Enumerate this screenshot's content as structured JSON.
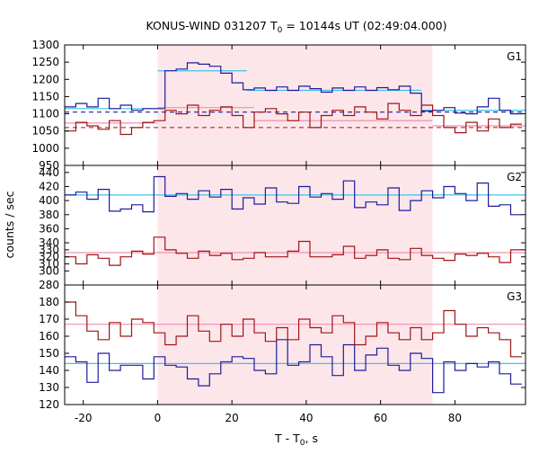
{
  "title": "KONUS-WIND 031207 T0 = 10144s UT (02:49:04.000)",
  "title_parts": {
    "prefix": "KONUS-WIND 031207 T",
    "sub": "0",
    "suffix": " = 10144s UT (02:49:04.000)"
  },
  "chart_data": {
    "type": "line",
    "style": "step",
    "xlabel": {
      "prefix": "T - T",
      "sub": "0",
      "suffix": ", s"
    },
    "ylabel": "counts / sec",
    "xlim": [
      -25,
      99
    ],
    "xticks": [
      -20,
      0,
      20,
      40,
      60,
      80
    ],
    "shaded_interval": [
      0,
      74
    ],
    "shade_color": "#fde6ea",
    "colors": {
      "red": "#a01414",
      "blue": "#1c1c9c",
      "red_fit": "#f090b0",
      "blue_fit": "#40c0e8"
    },
    "panels": [
      {
        "label": "G1",
        "ylim": [
          950,
          1300
        ],
        "yticks": [
          950,
          1000,
          1050,
          1100,
          1150,
          1200,
          1250,
          1300
        ],
        "ytick_labels": [
          "950",
          "1000",
          "1050",
          "1100",
          "1150",
          "1200",
          "1250",
          "1300"
        ],
        "step_x": [
          -25,
          -22,
          -19,
          -16,
          -13,
          -10,
          -7,
          -4,
          -1,
          2,
          5,
          8,
          11,
          14,
          17,
          20,
          23,
          26,
          29,
          32,
          35,
          38,
          41,
          44,
          47,
          50,
          53,
          56,
          59,
          62,
          65,
          68,
          71,
          74,
          77,
          80,
          83,
          86,
          89,
          92,
          95,
          98
        ],
        "series": [
          {
            "color": "blue",
            "values": [
              1120,
              1130,
              1120,
              1145,
              1115,
              1125,
              1110,
              1115,
              1115,
              1225,
              1230,
              1248,
              1244,
              1238,
              1218,
              1190,
              1170,
              1175,
              1168,
              1178,
              1168,
              1180,
              1173,
              1163,
              1175,
              1168,
              1178,
              1168,
              1176,
              1170,
              1180,
              1160,
              1108,
              1110,
              1118,
              1102,
              1100,
              1120,
              1145,
              1110,
              1100
            ]
          },
          {
            "color": "red",
            "values": [
              1050,
              1075,
              1065,
              1055,
              1080,
              1040,
              1060,
              1075,
              1080,
              1110,
              1100,
              1125,
              1095,
              1110,
              1120,
              1095,
              1060,
              1105,
              1115,
              1100,
              1080,
              1105,
              1060,
              1095,
              1110,
              1095,
              1120,
              1105,
              1085,
              1130,
              1110,
              1095,
              1125,
              1095,
              1060,
              1045,
              1075,
              1050,
              1085,
              1060,
              1070
            ]
          }
        ],
        "fits": [
          {
            "color": "blue_fit",
            "from": -25,
            "to": 0,
            "value": 1115
          },
          {
            "color": "blue_fit",
            "from": 0,
            "to": 24,
            "value": 1225
          },
          {
            "color": "blue_fit",
            "from": 24,
            "to": 71,
            "value": 1168
          },
          {
            "color": "blue_fit",
            "from": 71,
            "to": 99,
            "value": 1110
          },
          {
            "color": "red_fit",
            "from": -25,
            "to": 0,
            "value": 1073
          },
          {
            "color": "red_fit",
            "from": 0,
            "to": 26,
            "value": 1118
          },
          {
            "color": "red_fit",
            "from": 26,
            "to": 74,
            "value": 1080
          },
          {
            "color": "red_fit",
            "from": 74,
            "to": 99,
            "value": 1065
          }
        ],
        "dashed": [
          {
            "color": "blue",
            "from": -25,
            "to": 99,
            "value": 1105
          },
          {
            "color": "red",
            "from": -25,
            "to": 99,
            "value": 1060
          }
        ]
      },
      {
        "label": "G2",
        "ylim": [
          280,
          450
        ],
        "yticks": [
          280,
          300,
          310,
          320,
          330,
          340,
          360,
          380,
          400,
          420,
          440
        ],
        "ytick_labels": [
          "280",
          "300",
          "310",
          "320",
          "330",
          "340",
          "360",
          "380",
          "400",
          "420",
          "440"
        ],
        "step_x": [
          -25,
          -22,
          -19,
          -16,
          -13,
          -10,
          -7,
          -4,
          -1,
          2,
          5,
          8,
          11,
          14,
          17,
          20,
          23,
          26,
          29,
          32,
          35,
          38,
          41,
          44,
          47,
          50,
          53,
          56,
          59,
          62,
          65,
          68,
          71,
          74,
          77,
          80,
          83,
          86,
          89,
          92,
          95,
          98
        ],
        "series": [
          {
            "color": "blue",
            "values": [
              408,
              412,
              402,
              416,
              385,
              388,
              394,
              384,
              434,
              406,
              410,
              402,
              414,
              405,
              416,
              388,
              404,
              395,
              418,
              398,
              396,
              420,
              405,
              410,
              402,
              428,
              390,
              398,
              394,
              418,
              386,
              400,
              414,
              404,
              420,
              410,
              400,
              425,
              392,
              394,
              380
            ]
          },
          {
            "color": "red",
            "values": [
              320,
              310,
              323,
              318,
              308,
              320,
              328,
              324,
              348,
              330,
              325,
              318,
              328,
              322,
              325,
              316,
              318,
              326,
              320,
              320,
              328,
              342,
              320,
              320,
              323,
              335,
              318,
              322,
              330,
              318,
              316,
              332,
              322,
              318,
              315,
              324,
              322,
              325,
              320,
              312,
              330
            ]
          }
        ],
        "fits": [
          {
            "color": "blue_fit",
            "from": -25,
            "to": 99,
            "value": 408
          },
          {
            "color": "red_fit",
            "from": -25,
            "to": 99,
            "value": 326
          }
        ],
        "dashed": []
      },
      {
        "label": "G3",
        "ylim": [
          120,
          190
        ],
        "yticks": [
          120,
          130,
          140,
          150,
          160,
          170,
          180
        ],
        "ytick_labels": [
          "120",
          "130",
          "140",
          "150",
          "160",
          "170",
          "180"
        ],
        "step_x": [
          -25,
          -22,
          -19,
          -16,
          -13,
          -10,
          -7,
          -4,
          -1,
          2,
          5,
          8,
          11,
          14,
          17,
          20,
          23,
          26,
          29,
          32,
          35,
          38,
          41,
          44,
          47,
          50,
          53,
          56,
          59,
          62,
          65,
          68,
          71,
          74,
          77,
          80,
          83,
          86,
          89,
          92,
          95,
          98
        ],
        "series": [
          {
            "color": "blue",
            "values": [
              148,
              145,
              133,
              150,
              140,
              143,
              143,
              135,
              148,
              143,
              142,
              135,
              131,
              138,
              145,
              148,
              147,
              140,
              138,
              158,
              143,
              145,
              155,
              148,
              137,
              155,
              140,
              149,
              153,
              143,
              140,
              150,
              147,
              127,
              145,
              140,
              144,
              142,
              145,
              138,
              132
            ]
          },
          {
            "color": "red",
            "values": [
              180,
              172,
              163,
              158,
              168,
              160,
              170,
              168,
              162,
              155,
              160,
              172,
              163,
              157,
              167,
              160,
              170,
              162,
              157,
              165,
              158,
              170,
              165,
              162,
              172,
              168,
              155,
              160,
              168,
              162,
              158,
              165,
              158,
              162,
              175,
              167,
              160,
              165,
              162,
              158,
              148
            ]
          }
        ],
        "fits": [
          {
            "color": "blue_fit",
            "from": -25,
            "to": 99,
            "value": 144
          },
          {
            "color": "red_fit",
            "from": -25,
            "to": 99,
            "value": 167
          }
        ],
        "dashed": []
      }
    ]
  }
}
